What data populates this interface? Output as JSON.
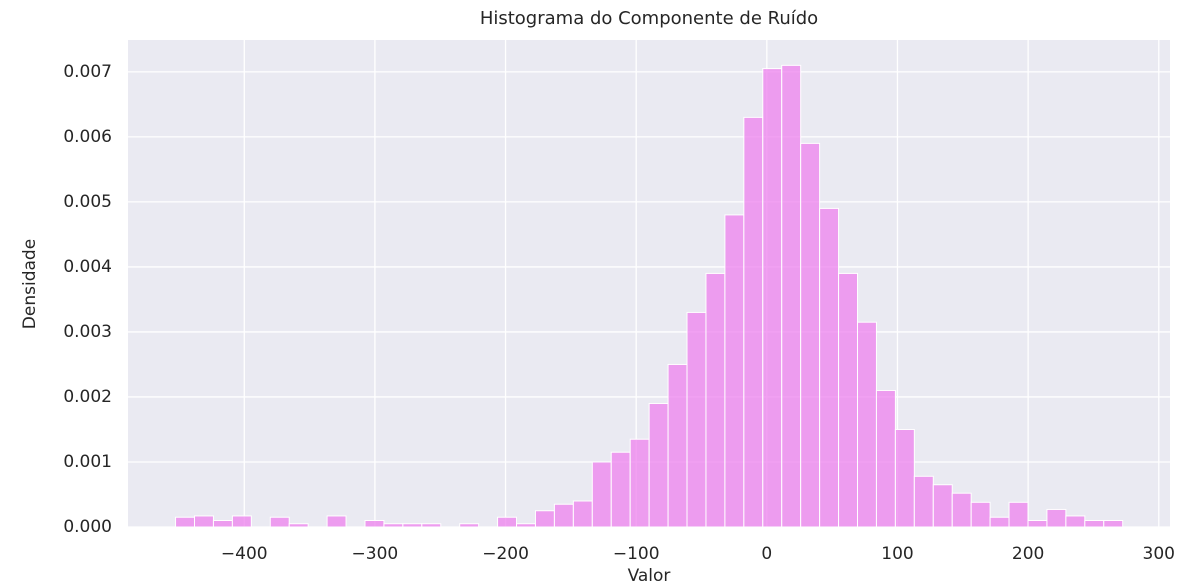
{
  "chart_data": {
    "type": "histogram",
    "title": "Histograma do Componente de Ruído",
    "xlabel": "Valor",
    "ylabel": "Densidade",
    "color": "#ee82ee",
    "bins": [
      -452.6,
      -438.1,
      -423.6,
      -409.1,
      -394.6,
      -380.1,
      -365.6,
      -351.1,
      -336.6,
      -322.1,
      -307.6,
      -293.1,
      -278.6,
      -264.1,
      -249.6,
      -235.1,
      -220.6,
      -206.1,
      -191.6,
      -177.1,
      -162.6,
      -148.1,
      -133.6,
      -119.1,
      -104.6,
      -90.1,
      -75.6,
      -61.1,
      -46.6,
      -32.1,
      -17.6,
      -3.1,
      11.4,
      25.9,
      40.4,
      54.9,
      69.4,
      83.9,
      98.4,
      112.9,
      127.4,
      141.9,
      156.4,
      170.9,
      185.4,
      199.9,
      214.4,
      228.9,
      243.4,
      257.9,
      272.4
    ],
    "values": [
      0.00015,
      0.00017,
      0.0001,
      0.00017,
      0,
      0.00015,
      5e-05,
      0,
      0.00017,
      0,
      0.0001,
      5e-05,
      5e-05,
      5e-05,
      0,
      5e-05,
      0,
      0.00015,
      5e-05,
      0.00025,
      0.00035,
      0.0004,
      0.001,
      0.00115,
      0.00135,
      0.0019,
      0.0025,
      0.0033,
      0.0039,
      0.0048,
      0.0063,
      0.00705,
      0.0071,
      0.0059,
      0.0049,
      0.0039,
      0.00315,
      0.0021,
      0.0015,
      0.00078,
      0.00065,
      0.00052,
      0.00038,
      0.00015,
      0.00038,
      0.0001,
      0.00027,
      0.00017,
      0.0001,
      0.0001
    ],
    "xlim": [
      -489,
      308.6
    ],
    "ylim": [
      0,
      0.00749
    ],
    "xticks": [
      {
        "value": -400,
        "label": "−400"
      },
      {
        "value": -300,
        "label": "−300"
      },
      {
        "value": -200,
        "label": "−200"
      },
      {
        "value": -100,
        "label": "−100"
      },
      0,
      100,
      200,
      300
    ],
    "yticks": [
      {
        "value": 0,
        "label": "0.000"
      },
      0.001,
      0.002,
      0.003,
      0.004,
      0.005,
      0.006,
      0.007
    ],
    "grid": true
  }
}
